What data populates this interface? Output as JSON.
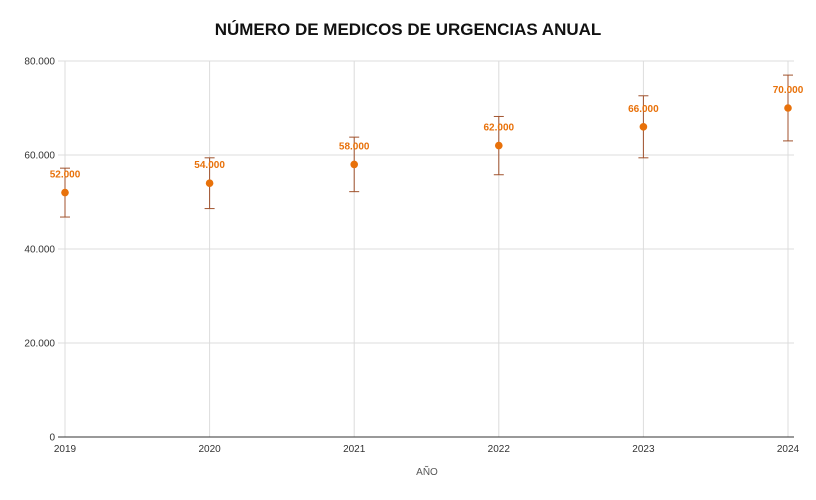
{
  "chart_data": {
    "type": "scatter",
    "title": "NÚMERO DE MEDICOS DE URGENCIAS ANUAL",
    "xlabel": "AÑO",
    "ylabel": "",
    "categories": [
      "2019",
      "2020",
      "2021",
      "2022",
      "2023",
      "2024"
    ],
    "series": [
      {
        "values": [
          52000,
          54000,
          58000,
          62000,
          66000,
          70000
        ],
        "error_low": [
          46800,
          48600,
          52200,
          55800,
          59400,
          63000
        ],
        "error_high": [
          57200,
          59400,
          63800,
          68200,
          72600,
          77000
        ],
        "data_labels": [
          "52.000",
          "54.000",
          "58.000",
          "62.000",
          "66.000",
          "70.000"
        ],
        "color": "#e8710a"
      }
    ],
    "ylim": [
      0,
      80000
    ],
    "yticks": [
      0,
      20000,
      40000,
      60000,
      80000
    ],
    "ytick_labels": [
      "0",
      "20.000",
      "40.000",
      "60.000",
      "80.000"
    ],
    "grid": true,
    "error_bar_color": "#a0522d"
  }
}
